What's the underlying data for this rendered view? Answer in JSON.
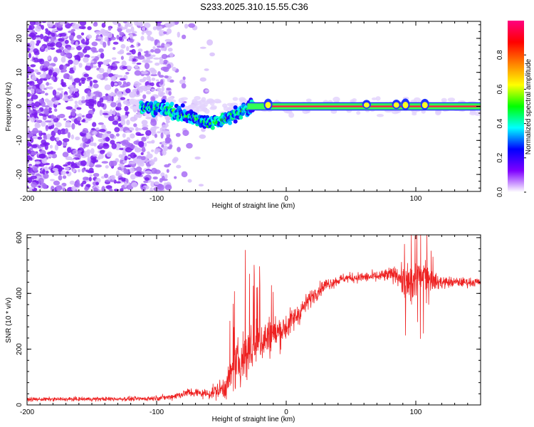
{
  "title": "S233.2025.310.15.55.C36",
  "chart_data": [
    {
      "type": "heatmap",
      "name": "spectrogram",
      "xlabel": "Height of straight line (km)",
      "ylabel": "Frequency (Hz)",
      "xlim": [
        -200,
        150
      ],
      "ylim": [
        -25,
        25
      ],
      "xticks": [
        -200,
        -100,
        0,
        100
      ],
      "yticks": [
        -20,
        -10,
        0,
        10,
        20
      ],
      "colorbar": {
        "label": "Normalized spectral amplitude",
        "range": [
          0,
          1
        ],
        "ticks": [
          "0.0",
          "0.2",
          "0.4",
          "0.6",
          "0.8"
        ],
        "stops": [
          "#ffffff",
          "#7f00ff",
          "#0000ff",
          "#00ffff",
          "#00ff00",
          "#ffff00",
          "#ff8000",
          "#ff0000",
          "#ff0080"
        ]
      },
      "features": {
        "noise_region_x": [
          -200,
          -57
        ],
        "signal_carrier": [
          {
            "x": -110,
            "y": 0
          },
          {
            "x": -90,
            "y": -1
          },
          {
            "x": -75,
            "y": -3
          },
          {
            "x": -60,
            "y": -5
          },
          {
            "x": -45,
            "y": -3.5
          },
          {
            "x": -35,
            "y": -1.5
          },
          {
            "x": -25,
            "y": 0
          },
          {
            "x": 150,
            "y": 0
          }
        ]
      }
    },
    {
      "type": "line",
      "name": "snr",
      "xlabel": "Height of straight line (km)",
      "ylabel": "SNR (10 * v/v)",
      "xlim": [
        -200,
        150
      ],
      "ylim": [
        0,
        610
      ],
      "xticks": [
        -200,
        -100,
        0,
        100
      ],
      "yticks": [
        0,
        200,
        400,
        600
      ],
      "color": "#ee2222",
      "envelope": [
        {
          "x": -200,
          "mean": 20,
          "spread": 12
        },
        {
          "x": -110,
          "mean": 22,
          "spread": 14
        },
        {
          "x": -90,
          "mean": 28,
          "spread": 18
        },
        {
          "x": -75,
          "mean": 45,
          "spread": 30
        },
        {
          "x": -60,
          "mean": 40,
          "spread": 30
        },
        {
          "x": -48,
          "mean": 60,
          "spread": 70
        },
        {
          "x": -40,
          "mean": 130,
          "spread": 130
        },
        {
          "x": -30,
          "mean": 190,
          "spread": 180
        },
        {
          "x": -20,
          "mean": 230,
          "spread": 140
        },
        {
          "x": -10,
          "mean": 250,
          "spread": 120
        },
        {
          "x": 0,
          "mean": 280,
          "spread": 90
        },
        {
          "x": 10,
          "mean": 330,
          "spread": 70
        },
        {
          "x": 20,
          "mean": 390,
          "spread": 50
        },
        {
          "x": 30,
          "mean": 430,
          "spread": 40
        },
        {
          "x": 45,
          "mean": 455,
          "spread": 30
        },
        {
          "x": 70,
          "mean": 460,
          "spread": 35
        },
        {
          "x": 85,
          "mean": 470,
          "spread": 50
        },
        {
          "x": 95,
          "mean": 420,
          "spread": 140
        },
        {
          "x": 105,
          "mean": 480,
          "spread": 120
        },
        {
          "x": 115,
          "mean": 440,
          "spread": 50
        },
        {
          "x": 130,
          "mean": 440,
          "spread": 30
        },
        {
          "x": 150,
          "mean": 440,
          "spread": 28
        }
      ]
    }
  ]
}
